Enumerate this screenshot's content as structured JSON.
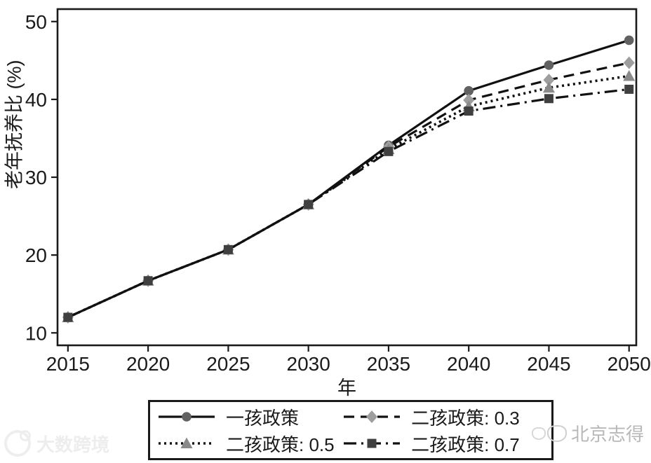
{
  "chart_data": {
    "type": "line",
    "title": "",
    "xlabel": "年",
    "ylabel": "老年抚养比 (%)",
    "x": [
      2015,
      2020,
      2025,
      2030,
      2035,
      2040,
      2045,
      2050
    ],
    "xticks": [
      2015,
      2020,
      2025,
      2030,
      2035,
      2040,
      2045,
      2050
    ],
    "yticks": [
      10,
      20,
      30,
      40,
      50
    ],
    "xlim": [
      2014.35,
      2050.45
    ],
    "ylim": [
      8.4,
      51.6
    ],
    "grid": false,
    "legend_position": "bottom",
    "frame_color": "#1a1a1a",
    "line_color": "#111111",
    "series": [
      {
        "name": "一孩政策",
        "line": "solid",
        "marker": "circle",
        "marker_color": "#616161",
        "values": [
          12.0,
          16.7,
          20.7,
          26.5,
          34.1,
          41.1,
          44.4,
          47.6
        ]
      },
      {
        "name": "二孩政策: 0.3",
        "line": "dashed",
        "marker": "diamond",
        "marker_color": "#9e9e9e",
        "values": [
          12.0,
          16.7,
          20.7,
          26.5,
          33.9,
          39.9,
          42.5,
          44.7
        ]
      },
      {
        "name": "二孩政策: 0.5",
        "line": "dotted",
        "marker": "triangle",
        "marker_color": "#8a8a8a",
        "values": [
          12.0,
          16.7,
          20.7,
          26.5,
          33.6,
          39.1,
          41.5,
          43.0
        ]
      },
      {
        "name": "二孩政策: 0.7",
        "line": "dashdot",
        "marker": "square",
        "marker_color": "#404040",
        "values": [
          12.0,
          16.7,
          20.7,
          26.5,
          33.3,
          38.5,
          40.1,
          41.3
        ]
      }
    ]
  },
  "watermarks": {
    "bottom_left": "大数跨境",
    "bottom_right": "北京志得"
  }
}
